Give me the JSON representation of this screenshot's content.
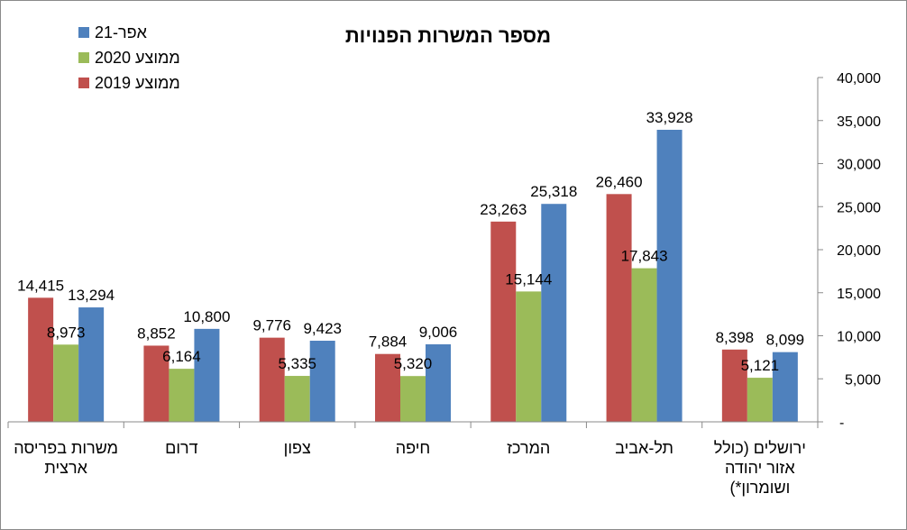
{
  "chart_data": {
    "type": "bar",
    "title": "מספר המשרות הפנויות",
    "categories": [
      [
        "משרות בפריסה",
        "ארצית"
      ],
      [
        "דרום"
      ],
      [
        "צפון"
      ],
      [
        "חיפה"
      ],
      [
        "המרכז"
      ],
      [
        "תל-אביב"
      ],
      [
        "ירושלים (כולל",
        "אזור יהודה",
        "ושומרון*)"
      ]
    ],
    "series": [
      {
        "name": "ממוצע 2019",
        "color": "#C0504D",
        "values": [
          14415,
          8852,
          9776,
          7884,
          23263,
          26460,
          8398
        ]
      },
      {
        "name": "ממוצע 2020",
        "color": "#9BBB59",
        "values": [
          8973,
          6164,
          5335,
          5320,
          15144,
          17843,
          5121
        ]
      },
      {
        "name": "אפר-21",
        "color": "#4F81BD",
        "values": [
          13294,
          10800,
          9423,
          9006,
          25318,
          33928,
          8099
        ]
      }
    ],
    "data_labels": [
      [
        "14,415",
        "8,852",
        "9,776",
        "7,884",
        "23,263",
        "26,460",
        "8,398"
      ],
      [
        "8,973",
        "6,164",
        "5,335",
        "5,320",
        "15,144",
        "17,843",
        "5,121"
      ],
      [
        "13,294",
        "10,800",
        "9,423",
        "9,006",
        "25,318",
        "33,928",
        "8,099"
      ]
    ],
    "ylim": [
      0,
      40000
    ],
    "yticks": [
      0,
      5000,
      10000,
      15000,
      20000,
      25000,
      30000,
      35000,
      40000
    ],
    "ytick_labels": [
      "-",
      "5,000",
      "10,000",
      "15,000",
      "20,000",
      "25,000",
      "30,000",
      "35,000",
      "40,000"
    ],
    "y_axis_side": "right",
    "grid": false,
    "legend_position": "top-left",
    "legend_order": [
      "אפר-21",
      "ממוצע 2020",
      "ממוצע 2019"
    ]
  }
}
